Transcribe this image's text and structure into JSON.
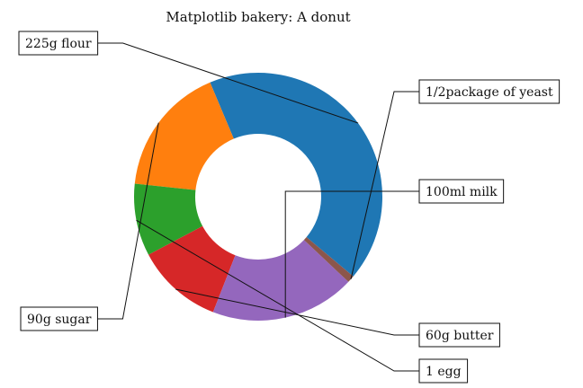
{
  "chart_data": {
    "type": "pie",
    "variant": "donut",
    "title": "Matplotlib bakery: A donut",
    "categories": [
      "225g flour",
      "90g sugar",
      "1 egg",
      "60g butter",
      "100ml milk",
      "1/2package of yeast"
    ],
    "values": [
      225,
      90,
      50,
      60,
      100,
      5
    ],
    "colors": [
      "#1f77b4",
      "#ff7f0e",
      "#2ca02c",
      "#d62728",
      "#9467bd",
      "#8c564b"
    ],
    "start_angle_deg": -40,
    "counterclock": true
  }
}
